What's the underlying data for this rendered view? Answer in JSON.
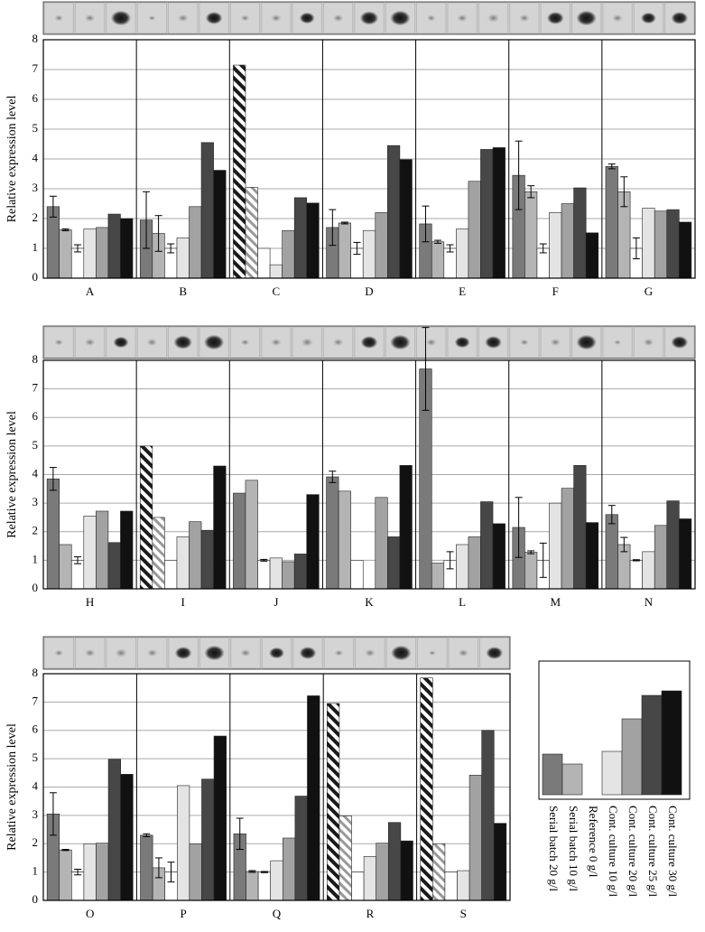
{
  "legend": [
    {
      "name": "Serial batch 20 g/l",
      "color": "#7a7a7a"
    },
    {
      "name": "Serial batch 10 g/l",
      "color": "#b4b4b4"
    },
    {
      "name": "Reference 0 g/l",
      "color": "#ffffff"
    },
    {
      "name": "Cont. culture 10 g/l",
      "color": "#e4e4e4"
    },
    {
      "name": "Cont. culture 20 g/l",
      "color": "#a2a2a2"
    },
    {
      "name": "Cont. culture 25 g/l",
      "color": "#474747"
    },
    {
      "name": "Cont. culture 30 g/l",
      "color": "#111111"
    }
  ],
  "chart_data": [
    {
      "type": "bar",
      "ylabel": "Relative expression level",
      "ylim": [
        0,
        8
      ],
      "yticks": [
        0,
        1,
        2,
        3,
        4,
        5,
        6,
        7,
        8
      ],
      "grid": true,
      "categories": [
        "A",
        "B",
        "C",
        "D",
        "E",
        "F",
        "G"
      ],
      "hatched": [
        false,
        false,
        true,
        false,
        false,
        false,
        false
      ],
      "series": [
        {
          "values": [
            2.4,
            1.95,
            7.15,
            1.7,
            1.82,
            3.45,
            3.75
          ],
          "errors": [
            0.35,
            0.95,
            null,
            0.6,
            0.6,
            1.15,
            0.08
          ]
        },
        {
          "values": [
            1.62,
            1.5,
            3.05,
            1.85,
            1.22,
            2.9,
            2.9
          ],
          "errors": [
            0.03,
            0.6,
            null,
            0.03,
            0.05,
            0.2,
            0.5
          ]
        },
        {
          "values": [
            1.0,
            1.0,
            1.0,
            1.0,
            1.0,
            1.0,
            1.0
          ],
          "errors": [
            0.12,
            0.15,
            null,
            0.2,
            0.12,
            0.15,
            0.35
          ]
        },
        {
          "values": [
            1.65,
            1.35,
            0.45,
            1.6,
            1.65,
            2.2,
            2.35
          ]
        },
        {
          "values": [
            1.7,
            2.4,
            1.6,
            2.2,
            3.25,
            2.5,
            2.25
          ]
        },
        {
          "values": [
            2.15,
            4.55,
            2.7,
            4.45,
            4.32,
            3.03,
            2.3
          ]
        },
        {
          "values": [
            2.0,
            3.62,
            2.52,
            3.98,
            4.38,
            1.52,
            1.88
          ]
        }
      ]
    },
    {
      "type": "bar",
      "ylabel": "Relative expression level",
      "ylim": [
        0,
        8
      ],
      "yticks": [
        0,
        1,
        2,
        3,
        4,
        5,
        6,
        7,
        8
      ],
      "grid": true,
      "categories": [
        "H",
        "I",
        "J",
        "K",
        "L",
        "M",
        "N"
      ],
      "hatched": [
        false,
        true,
        false,
        false,
        false,
        false,
        false
      ],
      "series": [
        {
          "values": [
            3.85,
            5.0,
            3.35,
            3.92,
            7.7,
            2.15,
            2.6
          ],
          "errors": [
            0.4,
            null,
            null,
            0.2,
            1.45,
            1.05,
            0.32
          ]
        },
        {
          "values": [
            1.55,
            2.5,
            3.8,
            3.42,
            0.9,
            1.28,
            1.55
          ],
          "errors": [
            null,
            null,
            null,
            null,
            null,
            0.05,
            0.25
          ]
        },
        {
          "values": [
            1.0,
            1.0,
            1.0,
            1.0,
            1.0,
            1.0,
            1.0
          ],
          "errors": [
            0.12,
            null,
            0.03,
            null,
            0.3,
            0.6,
            0.02
          ]
        },
        {
          "values": [
            2.55,
            1.82,
            1.08,
            0,
            1.55,
            3.0,
            1.3
          ]
        },
        {
          "values": [
            2.72,
            2.35,
            0.95,
            3.2,
            1.82,
            3.52,
            2.22
          ]
        },
        {
          "values": [
            1.62,
            2.05,
            1.22,
            1.82,
            3.05,
            4.32,
            3.08
          ]
        },
        {
          "values": [
            2.72,
            4.3,
            3.3,
            4.32,
            2.28,
            2.32,
            2.45
          ]
        }
      ]
    },
    {
      "type": "bar",
      "ylabel": "Relative expression level",
      "ylim": [
        0,
        8
      ],
      "yticks": [
        0,
        1,
        2,
        3,
        4,
        5,
        6,
        7,
        8
      ],
      "grid": true,
      "categories": [
        "O",
        "P",
        "Q",
        "R",
        "S"
      ],
      "hatched": [
        false,
        false,
        false,
        true,
        true
      ],
      "series": [
        {
          "values": [
            3.05,
            2.3,
            2.35,
            6.95,
            7.85
          ],
          "errors": [
            0.75,
            0.05,
            0.55,
            null,
            null
          ]
        },
        {
          "values": [
            1.78,
            1.15,
            1.02,
            2.98,
            2.0
          ],
          "errors": [
            0.02,
            0.35,
            0.03,
            null,
            null
          ]
        },
        {
          "values": [
            1.0,
            1.0,
            1.0,
            1.0,
            1.0
          ],
          "errors": [
            0.1,
            0.35,
            0.02,
            null,
            null
          ]
        },
        {
          "values": [
            2.0,
            4.05,
            1.4,
            1.55,
            1.05
          ]
        },
        {
          "values": [
            2.02,
            2.0,
            2.2,
            2.02,
            4.42
          ]
        },
        {
          "values": [
            4.98,
            4.28,
            3.68,
            2.75,
            6.0
          ]
        },
        {
          "values": [
            4.45,
            5.8,
            7.22,
            2.1,
            2.72
          ]
        }
      ]
    }
  ]
}
